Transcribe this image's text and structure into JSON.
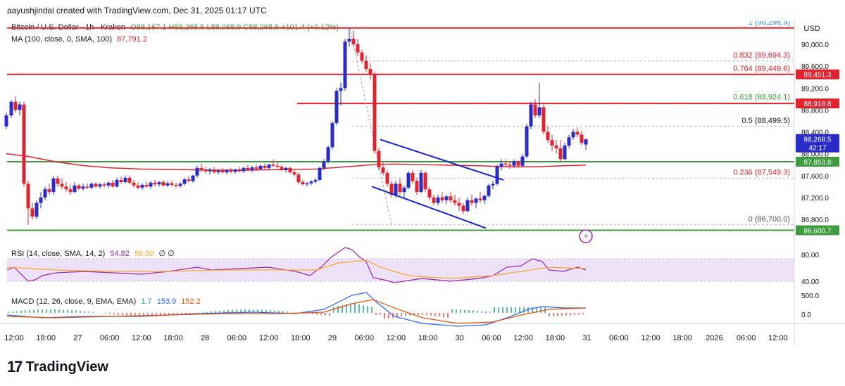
{
  "header": {
    "attribution": "aayushjindal created with TradingView.com, Dec 31, 2025 01:17 UTC"
  },
  "legend": {
    "symbol": "Bitcoin / U.S. Dollar · 1h · Kraken",
    "ohlc": "O88,167.1  H88,268.5  L88,068.9  C88,268.5  +101.4 (+0.12%)",
    "ma_label": "MA (100, close, 0, SMA, 100)",
    "ma_value": "87,791.2",
    "rsi_label": "RSI (14, close, SMA, 14, 2)",
    "rsi_value": "54.82",
    "rsi_sma": "58.50",
    "rsi_extra": "∅  ∅",
    "macd_label": "MACD (12, 26, close, 9, EMA, EMA)",
    "macd_hist": "1.7",
    "macd_line": "153.9",
    "macd_signal": "152.2"
  },
  "currency": "USD",
  "price_axis": [
    "90,000.0",
    "89,600.0",
    "89,200.0",
    "88,800.0",
    "88,400.0",
    "88,000.0",
    "87,600.0",
    "87,200.0",
    "86,800.0"
  ],
  "price_tags": [
    {
      "label": "89,451.3",
      "color": "#e0232e"
    },
    {
      "label": "88,918.8",
      "color": "#e0232e"
    },
    {
      "label": "88,268.5",
      "sub": "42:17",
      "color": "#2a2cc8"
    },
    {
      "label": "87,853.8",
      "color": "#3f9b3f"
    },
    {
      "label": "86,600.7",
      "color": "#3f9b3f"
    }
  ],
  "rsi_axis": [
    "80.00",
    "40.00"
  ],
  "macd_axis": [
    "500.0",
    "0.0"
  ],
  "fib_levels": [
    {
      "label": "1 (90,298.9)",
      "price": 90298.9,
      "color": "#1e88e5"
    },
    {
      "label": "0.832 (89,694.3)",
      "price": 89694.3,
      "color": "#e0232e"
    },
    {
      "label": "0.764 (89,449.6)",
      "price": 89449.6,
      "color": "#e0232e"
    },
    {
      "label": "0.618 (88,924.1)",
      "price": 88924.1,
      "color": "#3f9b3f"
    },
    {
      "label": "0.5 (88,499.5)",
      "price": 88499.5,
      "color": "#131722"
    },
    {
      "label": "0.236 (87,549.3)",
      "price": 87549.3,
      "color": "#e0232e"
    },
    {
      "label": "0 (86,700.0)",
      "price": 86700.0,
      "color": "#555555"
    }
  ],
  "time_axis": [
    "12:00",
    "18:00",
    "27",
    "06:00",
    "12:00",
    "18:00",
    "28",
    "06:00",
    "12:00",
    "18:00",
    "29",
    "06:00",
    "12:00",
    "18:00",
    "30",
    "06:00",
    "12:00",
    "18:00",
    "31",
    "06:00",
    "12:00",
    "18:00",
    "2026",
    "06:00",
    "12:00"
  ],
  "brand": {
    "mark": "17",
    "word": "TradingView"
  },
  "chart_data": {
    "type": "candlestick",
    "title": "Bitcoin / U.S. Dollar · 1h · Kraken",
    "ylabel": "USD",
    "ylim": [
      86500,
      90350
    ],
    "horizontal_lines": [
      {
        "price": 90298.9,
        "color": "#e0232e"
      },
      {
        "price": 89451.3,
        "color": "#e0232e"
      },
      {
        "price": 88918.8,
        "color": "#e0232e"
      },
      {
        "price": 87853.8,
        "color": "#3f9b3f"
      },
      {
        "price": 86600.7,
        "color": "#3f9b3f"
      }
    ],
    "channel_lines": [
      {
        "from": [
          540,
          88260
        ],
        "to": [
          715,
          87520
        ]
      },
      {
        "from": [
          528,
          87400
        ],
        "to": [
          690,
          86640
        ]
      }
    ],
    "candles": [
      [
        9,
        88500,
        88750,
        88450,
        88700
      ],
      [
        16,
        88700,
        88980,
        88650,
        88950
      ],
      [
        22,
        88950,
        89050,
        88750,
        88800
      ],
      [
        28,
        88800,
        88950,
        88700,
        88900
      ],
      [
        34,
        88900,
        88950,
        87400,
        87450
      ],
      [
        40,
        87450,
        87500,
        86700,
        87000
      ],
      [
        46,
        87000,
        87100,
        86800,
        86850
      ],
      [
        52,
        86850,
        87150,
        86800,
        87100
      ],
      [
        58,
        87100,
        87300,
        87000,
        87200
      ],
      [
        64,
        87200,
        87400,
        87150,
        87350
      ],
      [
        70,
        87350,
        87450,
        87250,
        87300
      ],
      [
        76,
        87300,
        87600,
        87250,
        87550
      ],
      [
        82,
        87550,
        87600,
        87400,
        87450
      ],
      [
        88,
        87450,
        87550,
        87350,
        87400
      ],
      [
        94,
        87400,
        87480,
        87300,
        87350
      ],
      [
        100,
        87350,
        87450,
        87250,
        87300
      ],
      [
        106,
        87300,
        87480,
        87280,
        87420
      ],
      [
        112,
        87420,
        87450,
        87330,
        87360
      ],
      [
        118,
        87360,
        87450,
        87320,
        87400
      ],
      [
        124,
        87400,
        87460,
        87350,
        87380
      ],
      [
        130,
        87380,
        87480,
        87350,
        87450
      ],
      [
        136,
        87450,
        87480,
        87380,
        87400
      ],
      [
        142,
        87400,
        87470,
        87360,
        87440
      ],
      [
        148,
        87440,
        87480,
        87380,
        87420
      ],
      [
        154,
        87420,
        87500,
        87380,
        87470
      ],
      [
        160,
        87470,
        87520,
        87380,
        87400
      ],
      [
        166,
        87400,
        87560,
        87380,
        87520
      ],
      [
        172,
        87520,
        87580,
        87450,
        87480
      ],
      [
        178,
        87480,
        87600,
        87450,
        87560
      ],
      [
        184,
        87560,
        87600,
        87450,
        87470
      ],
      [
        190,
        87470,
        87520,
        87380,
        87420
      ],
      [
        196,
        87420,
        87480,
        87350,
        87380
      ],
      [
        202,
        87380,
        87460,
        87340,
        87430
      ],
      [
        208,
        87430,
        87480,
        87380,
        87400
      ],
      [
        214,
        87400,
        87500,
        87360,
        87470
      ],
      [
        220,
        87470,
        87520,
        87400,
        87440
      ],
      [
        226,
        87440,
        87500,
        87400,
        87480
      ],
      [
        232,
        87480,
        87520,
        87400,
        87420
      ],
      [
        238,
        87420,
        87500,
        87390,
        87460
      ],
      [
        244,
        87460,
        87510,
        87400,
        87430
      ],
      [
        250,
        87430,
        87470,
        87380,
        87410
      ],
      [
        256,
        87410,
        87480,
        87380,
        87450
      ],
      [
        262,
        87450,
        87560,
        87420,
        87530
      ],
      [
        268,
        87530,
        87580,
        87480,
        87500
      ],
      [
        274,
        87500,
        87620,
        87470,
        87600
      ],
      [
        280,
        87600,
        87780,
        87560,
        87740
      ],
      [
        286,
        87740,
        87820,
        87660,
        87700
      ],
      [
        292,
        87700,
        87760,
        87640,
        87680
      ],
      [
        298,
        87680,
        87740,
        87620,
        87710
      ],
      [
        304,
        87710,
        87760,
        87640,
        87660
      ],
      [
        310,
        87660,
        87720,
        87620,
        87690
      ],
      [
        316,
        87690,
        87740,
        87640,
        87660
      ],
      [
        322,
        87660,
        87720,
        87620,
        87700
      ],
      [
        328,
        87700,
        87740,
        87640,
        87670
      ],
      [
        334,
        87670,
        87730,
        87640,
        87710
      ],
      [
        340,
        87710,
        87760,
        87660,
        87680
      ],
      [
        346,
        87680,
        87760,
        87650,
        87740
      ],
      [
        352,
        87740,
        87790,
        87680,
        87700
      ],
      [
        358,
        87700,
        87780,
        87660,
        87750
      ],
      [
        364,
        87750,
        87800,
        87700,
        87720
      ],
      [
        370,
        87720,
        87800,
        87700,
        87780
      ],
      [
        376,
        87780,
        87820,
        87720,
        87740
      ],
      [
        382,
        87740,
        87820,
        87710,
        87800
      ],
      [
        388,
        87800,
        87900,
        87760,
        87780
      ],
      [
        394,
        87780,
        87860,
        87740,
        87760
      ],
      [
        400,
        87760,
        87800,
        87680,
        87700
      ],
      [
        406,
        87700,
        87760,
        87660,
        87740
      ],
      [
        412,
        87740,
        87760,
        87640,
        87660
      ],
      [
        418,
        87660,
        87700,
        87580,
        87620
      ],
      [
        424,
        87620,
        87660,
        87440,
        87480
      ],
      [
        430,
        87480,
        87520,
        87420,
        87440
      ],
      [
        436,
        87440,
        87480,
        87400,
        87460
      ],
      [
        442,
        87460,
        87520,
        87420,
        87490
      ],
      [
        448,
        87490,
        87560,
        87460,
        87520
      ],
      [
        454,
        87520,
        87760,
        87500,
        87740
      ],
      [
        460,
        87740,
        87900,
        87700,
        87860
      ],
      [
        466,
        87860,
        88150,
        87820,
        88120
      ],
      [
        472,
        88120,
        88600,
        88080,
        88560
      ],
      [
        478,
        88560,
        89200,
        88520,
        89150
      ],
      [
        484,
        89150,
        89300,
        88880,
        89200
      ],
      [
        490,
        89200,
        90100,
        89150,
        90050
      ],
      [
        496,
        90050,
        90300,
        89950,
        90100
      ],
      [
        502,
        90100,
        90250,
        89950,
        90000
      ],
      [
        508,
        90000,
        90100,
        89780,
        89850
      ],
      [
        514,
        89850,
        89900,
        89650,
        89700
      ],
      [
        520,
        89700,
        89800,
        89500,
        89550
      ],
      [
        526,
        89550,
        89650,
        89350,
        89450
      ],
      [
        532,
        89450,
        89500,
        88000,
        88050
      ],
      [
        538,
        88050,
        88100,
        87700,
        87750
      ],
      [
        544,
        87750,
        87850,
        87600,
        87650
      ],
      [
        550,
        87650,
        87700,
        87400,
        87450
      ],
      [
        556,
        87450,
        87500,
        87200,
        87250
      ],
      [
        562,
        87250,
        87500,
        87200,
        87450
      ],
      [
        568,
        87450,
        87550,
        87250,
        87300
      ],
      [
        574,
        87300,
        87420,
        87180,
        87380
      ],
      [
        580,
        87380,
        87680,
        87350,
        87650
      ],
      [
        586,
        87650,
        87700,
        87450,
        87500
      ],
      [
        592,
        87500,
        87560,
        87250,
        87300
      ],
      [
        598,
        87300,
        87700,
        87280,
        87650
      ],
      [
        604,
        87650,
        87680,
        87300,
        87350
      ],
      [
        610,
        87350,
        87400,
        87150,
        87200
      ],
      [
        616,
        87200,
        87250,
        87050,
        87100
      ],
      [
        622,
        87100,
        87250,
        87050,
        87200
      ],
      [
        628,
        87200,
        87300,
        87100,
        87150
      ],
      [
        634,
        87150,
        87250,
        87080,
        87220
      ],
      [
        640,
        87220,
        87300,
        87100,
        87150
      ],
      [
        646,
        87150,
        87250,
        87050,
        87100
      ],
      [
        652,
        87100,
        87200,
        86950,
        87050
      ],
      [
        658,
        87050,
        87100,
        86900,
        86950
      ],
      [
        664,
        86950,
        87200,
        86930,
        87150
      ],
      [
        670,
        87150,
        87250,
        87050,
        87100
      ],
      [
        676,
        87100,
        87200,
        87000,
        87180
      ],
      [
        682,
        87180,
        87300,
        87100,
        87150
      ],
      [
        688,
        87150,
        87250,
        87080,
        87230
      ],
      [
        694,
        87230,
        87450,
        87200,
        87420
      ],
      [
        700,
        87420,
        87500,
        87350,
        87450
      ],
      [
        706,
        87450,
        87800,
        87420,
        87760
      ],
      [
        712,
        87760,
        87900,
        87700,
        87820
      ],
      [
        718,
        87820,
        87900,
        87750,
        87800
      ],
      [
        724,
        87800,
        87860,
        87720,
        87780
      ],
      [
        730,
        87780,
        87900,
        87740,
        87860
      ],
      [
        736,
        87860,
        87880,
        87740,
        87780
      ],
      [
        742,
        87780,
        88000,
        87760,
        87950
      ],
      [
        748,
        87950,
        88550,
        87920,
        88500
      ],
      [
        754,
        88500,
        88950,
        88450,
        88900
      ],
      [
        760,
        88900,
        89000,
        88650,
        88700
      ],
      [
        766,
        88700,
        89300,
        88650,
        88850
      ],
      [
        772,
        88850,
        88900,
        88350,
        88400
      ],
      [
        778,
        88400,
        88500,
        88200,
        88250
      ],
      [
        784,
        88250,
        88350,
        88050,
        88150
      ],
      [
        790,
        88150,
        88250,
        88000,
        88100
      ],
      [
        796,
        88100,
        88250,
        87850,
        87900
      ],
      [
        802,
        87900,
        88200,
        87880,
        88150
      ],
      [
        808,
        88150,
        88350,
        88100,
        88300
      ],
      [
        814,
        88300,
        88450,
        88250,
        88400
      ],
      [
        820,
        88400,
        88480,
        88300,
        88350
      ],
      [
        826,
        88350,
        88420,
        88150,
        88200
      ],
      [
        832,
        88167,
        88268,
        88069,
        88268
      ]
    ],
    "ma_100": [
      [
        9,
        88000
      ],
      [
        40,
        87950
      ],
      [
        80,
        87850
      ],
      [
        120,
        87780
      ],
      [
        160,
        87740
      ],
      [
        200,
        87720
      ],
      [
        250,
        87710
      ],
      [
        300,
        87700
      ],
      [
        350,
        87700
      ],
      [
        400,
        87710
      ],
      [
        450,
        87720
      ],
      [
        490,
        87760
      ],
      [
        530,
        87800
      ],
      [
        560,
        87810
      ],
      [
        600,
        87800
      ],
      [
        640,
        87790
      ],
      [
        680,
        87780
      ],
      [
        720,
        87760
      ],
      [
        760,
        87760
      ],
      [
        800,
        87780
      ],
      [
        832,
        87791
      ]
    ]
  }
}
